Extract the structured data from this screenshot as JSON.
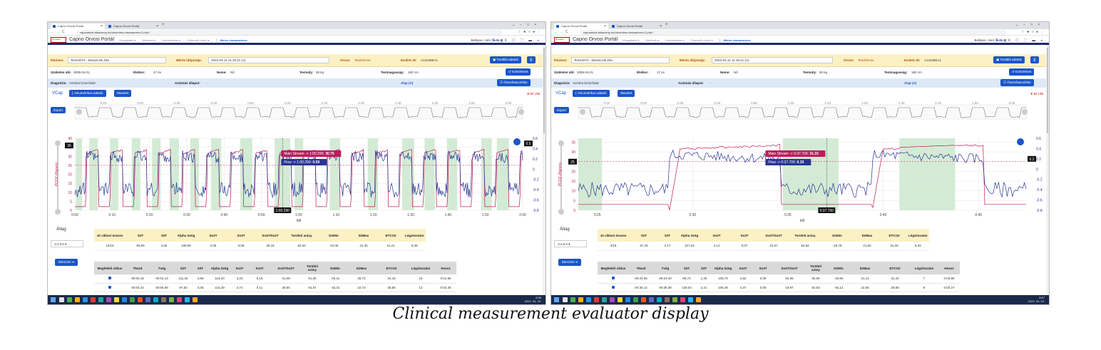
{
  "caption": "Clinical measurement evaluator display",
  "colors": {
    "primary": "#1a56c8",
    "navy": "#1a2a6c",
    "co2": "#c2185b",
    "flow": "#283593",
    "band": "#c8e6c9",
    "patient_bg": "#fcf1c4"
  },
  "screens": [
    {
      "tabs": [
        "Capno Orvosi Portál",
        "Capno Orvosi Portál"
      ],
      "url": "capnoteszt.albacomp.hu/view/view-visszanezes-2.php?",
      "app_title": "Capno Orvosi Portál",
      "menu": [
        "Vizsgálatok ▾",
        "Mérések ▾",
        "Karbantartás ▾",
        "Fejlesztői menü ▾"
      ],
      "menu_active": "Mérés visszanézése",
      "login_label": "Belépve, mint:",
      "login_user": "demo",
      "help": "Súgó",
      "patient_label": "Páciens:",
      "patient_value": "Teszt2074 - Marancsik Zita",
      "meas_label": "Mérés időpontja:",
      "meas_value": "2022-04-11 11:15:21 (A)",
      "doctor_label": "Orvos:",
      "doctor_value": "TesztOrvos",
      "device_label": "Eszköz ID:",
      "device_value": "A12345EA1",
      "more_btn": "További adatok",
      "birth_label": "Születési idő:",
      "birth_value": "2005.04.01.",
      "age_label": "Életkor:",
      "age_value": "17 év",
      "sex_label": "Neme:",
      "sex_value": "Nő",
      "weight_label": "Testsúly:",
      "weight_value": "50 kg",
      "height_label": "Testmagasság:",
      "height_value": "160 cm",
      "history_btn": "Kórtörténet",
      "diag_label": "Diagnózis:",
      "diag_value": "Asztma bronchiale",
      "asthma_label": "Asztmás állapot:",
      "asthma_value": "-",
      "state": "Alap (A)",
      "compare_btn": "Összehasonlítás",
      "vcap": "VCap",
      "vol_btn": "Volumetrikus adatok",
      "wavelet_btn": "Wavelet",
      "alarm": "92 | 99",
      "export_btn": "Export",
      "avg_label": "Átlag",
      "version": "V.2.6.0",
      "analyze_btn": "Elemzés",
      "tooltip_main": "Main Stream -> 1:00.290:",
      "tooltip_main_val": "30.75",
      "tooltip_flow": "Flow -> 1:00.290:",
      "tooltip_flow_val": "0.09",
      "cursor_time": "1:00.290",
      "left_marker": "36",
      "right_marker": "0.5",
      "legend_main": "Main Stream",
      "legend_main_val": "30.75",
      "legend_flow": "Flow",
      "legend_flow_val": "0.09",
      "xlabel": "Idő",
      "ylabel_left": "PCO2 (Hgmm)",
      "ylabel_right": "Flow (L/sec)",
      "xticks": [
        "0:00",
        "0:10",
        "0:20",
        "0:30",
        "0:40",
        "0:50",
        "1:00",
        "1:10",
        "1:20",
        "1:30",
        "1:40",
        "1:50",
        "2:00"
      ],
      "overview_ticks": [
        "0:10",
        "0:20",
        "0:30",
        "0:40",
        "0:50",
        "1:00",
        "1:10",
        "1:20",
        "1:30",
        "1:40",
        "1:50",
        "2:00"
      ],
      "yticks_left": [
        "40",
        "35",
        "30",
        "25",
        "20",
        "15",
        "10",
        "5",
        "0"
      ],
      "yticks_right": [
        "0.6",
        "0.4",
        "0.2",
        "0",
        "-0.2",
        "-0.4",
        "-0.6",
        "-0.8"
      ],
      "summary_headers": [
        "Jó ciklus/ összes",
        "S2T",
        "S3T",
        "Alpha Szög",
        "Sn2T",
        "Sn3T",
        "Sn3T/Sn2T",
        "Területi arány",
        "D2Min",
        "D2Max",
        "ETCO2",
        "Légzésszám"
      ],
      "summary_row": [
        "13/18",
        "96,58",
        "2,65",
        "109,95",
        "3,08",
        "0,08",
        "28,18",
        "82,63",
        "-33,46",
        "31,30",
        "31,21",
        "9,38"
      ],
      "detail_headers": [
        "Megfelelő ciklus",
        "Tkezd",
        "Tvég",
        "S2T",
        "S3T",
        "Alpha Szög",
        "Sn2T",
        "Sn3T",
        "Sn3T/Sn2T",
        "Területi arány",
        "D2Min",
        "D2Max",
        "ETCO2",
        "Légzésszám",
        "Hossz"
      ],
      "detail_rows": [
        [
          "00:00.18",
          "00:02.13",
          "111,18",
          "4,99",
          "118,20",
          "3,23",
          "0,15",
          "41,08",
          "81,05",
          "-20,11",
          "28,72",
          "34,43",
          "15",
          "0:01.96"
        ],
        [
          "00:04.22",
          "00:06.69",
          "97,60",
          "4,06",
          "115,29",
          "2,74",
          "0,11",
          "38,50",
          "81,87",
          "-15,31",
          "22,72",
          "35,56",
          "12",
          "0:02.48"
        ]
      ],
      "clock_time": "8:58",
      "clock_date": "2022. 04. 19.",
      "chart_data": {
        "type": "line",
        "x_range_s": [
          0,
          130
        ],
        "ylim": [
          0,
          40
        ],
        "y2lim": [
          -0.8,
          0.6
        ],
        "series": [
          {
            "name": "Main Stream"
          },
          {
            "name": "Flow"
          }
        ],
        "bands": [
          [
            0.3,
            2.1
          ],
          [
            4.2,
            6.7
          ],
          [
            10.2,
            12.6
          ],
          [
            16.5,
            19.0
          ],
          [
            22.4,
            24.9
          ],
          [
            27.5,
            30.2
          ],
          [
            33.5,
            36.0
          ],
          [
            39.5,
            42.5
          ],
          [
            48.0,
            51.5
          ],
          [
            58.0,
            62.5
          ],
          [
            63.8,
            66.3
          ],
          [
            74.0,
            77.0
          ],
          [
            85.0,
            88.0
          ],
          [
            95.0,
            98.5
          ],
          [
            101.5,
            104.5
          ],
          [
            108.0,
            111.0
          ],
          [
            118.0,
            121.0
          ],
          [
            122.5,
            126.0
          ]
        ],
        "cursor_s": 60.29,
        "cursor_values": {
          "main": 30.75,
          "flow": 0.09
        }
      }
    },
    {
      "tabs": [
        "Capno Orvosi Portál",
        "Capno Orvosi Portál"
      ],
      "url": "capnoteszt.albacomp.hu/view/view-visszanezes-2.php?",
      "app_title": "Capno Orvosi Portál",
      "menu": [
        "Vizsgálatok ▾",
        "Mérések ▾",
        "Karbantartás ▾",
        "Fejlesztői menü ▾"
      ],
      "menu_active": "Mérés visszanézése",
      "login_label": "Belépve, mint:",
      "login_user": "demo",
      "help": "Súgó",
      "patient_label": "Páciens:",
      "patient_value": "Teszt2074 - Marancsik Zita",
      "meas_label": "Mérés időpontja:",
      "meas_value": "2022-04-11 11:15:21 (A)",
      "doctor_label": "Orvos:",
      "doctor_value": "TesztOrvos",
      "device_label": "Eszköz ID:",
      "device_value": "A12345EA1",
      "more_btn": "További adatok",
      "birth_label": "Születési idő:",
      "birth_value": "2005.04.01.",
      "age_label": "Életkor:",
      "age_value": "17 év",
      "sex_label": "Neme:",
      "sex_value": "Nő",
      "weight_label": "Testsúly:",
      "weight_value": "50 kg",
      "height_label": "Testmagasság:",
      "height_value": "160 cm",
      "history_btn": "Kórtörténet",
      "diag_label": "Diagnózis:",
      "diag_value": "Asztma bronchiale",
      "asthma_label": "Asztmás állapot:",
      "asthma_value": "-",
      "state": "Alap (A)",
      "compare_btn": "Összehasonlítás",
      "vcap": "VCap",
      "vol_btn": "Volumetrikus adatok",
      "wavelet_btn": "Wavelet",
      "alarm": "92 | 99",
      "export_btn": "Export",
      "avg_label": "Átlag",
      "version": "V.2.6.0",
      "analyze_btn": "Elemzés",
      "tooltip_main": "Main Stream -> 0:37.700:",
      "tooltip_main_val": "31.15",
      "tooltip_flow": "Flow -> 0:37.700:",
      "tooltip_flow_val": "0.19",
      "cursor_time": "0:37.700",
      "left_marker": "25",
      "right_marker": "0.2",
      "legend_main": "Main Stream",
      "legend_main_val": "31.15",
      "legend_flow": "Flow",
      "legend_flow_val": "0.19",
      "xlabel": "Idő",
      "ylabel_left": "PCO2 (Hgmm)",
      "ylabel_right": "Flow (L/sec)",
      "xticks": [
        "0:25",
        "0:30",
        "0:35",
        "0:40",
        "0:45"
      ],
      "overview_ticks": [
        "0:10",
        "0:20",
        "0:30",
        "0:40",
        "0:50",
        "1:00",
        "1:10",
        "1:20",
        "1:30",
        "1:40",
        "1:50",
        "2:00"
      ],
      "yticks_left": [
        "35",
        "30",
        "25",
        "20",
        "15",
        "10",
        "5",
        "0"
      ],
      "yticks_right": [
        "0.6",
        "0.4",
        "0.2",
        "0",
        "-0.2",
        "-0.4",
        "-0.6",
        "-0.8"
      ],
      "summary_headers": [
        "Jó ciklus/ összes",
        "S2T",
        "S3T",
        "Alpha Szög",
        "Sn2T",
        "Sn3T",
        "Sn3T/Sn2T",
        "Területi arány",
        "D2Min",
        "D2Max",
        "ETCO2",
        "Légzésszám"
      ],
      "summary_row": [
        "3/18",
        "97,28",
        "2,17",
        "107,62",
        "3,14",
        "0,07",
        "23,57",
        "84,84",
        "-25,79",
        "21,60",
        "31,29",
        "8,33"
      ],
      "detail_headers": [
        "Megfelelő ciklus",
        "Tkezd",
        "Tvég",
        "S2T",
        "S3T",
        "Alpha Szög",
        "Sn2T",
        "Sn3T",
        "Sn3T/Sn2T",
        "Területi arány",
        "D2Min",
        "D2Max",
        "ETCO2",
        "Légzésszám",
        "Hossz"
      ],
      "detail_rows": [
        [
          "00:20.55",
          "00:24.40",
          "88,72",
          "2,36",
          "108,73",
          "2,82",
          "0,08",
          "26,66",
          "82,96",
          "-19,56",
          "21,13",
          "31,43",
          "7",
          "0:03.86"
        ],
        [
          "00:35.12",
          "00:38.38",
          "130,64",
          "2,41",
          "106,38",
          "4,37",
          "0,08",
          "19,97",
          "82,83",
          "-46,12",
          "22,06",
          "29,88",
          "9",
          "0:03.27"
        ]
      ],
      "clock_time": "8:57",
      "clock_date": "2022. 04. 19.",
      "chart_data": {
        "type": "line",
        "x_range_s": [
          23,
          49.5
        ],
        "ylim": [
          0,
          37
        ],
        "y2lim": [
          -0.8,
          0.6
        ],
        "series": [
          {
            "name": "Main Stream"
          },
          {
            "name": "Flow"
          }
        ],
        "bands": [
          [
            23.0,
            24.4
          ],
          [
            35.1,
            38.4
          ],
          [
            42.0,
            45.3
          ]
        ],
        "cursor_s": 37.7,
        "cursor_values": {
          "main": 31.15,
          "flow": 0.19
        }
      }
    }
  ]
}
